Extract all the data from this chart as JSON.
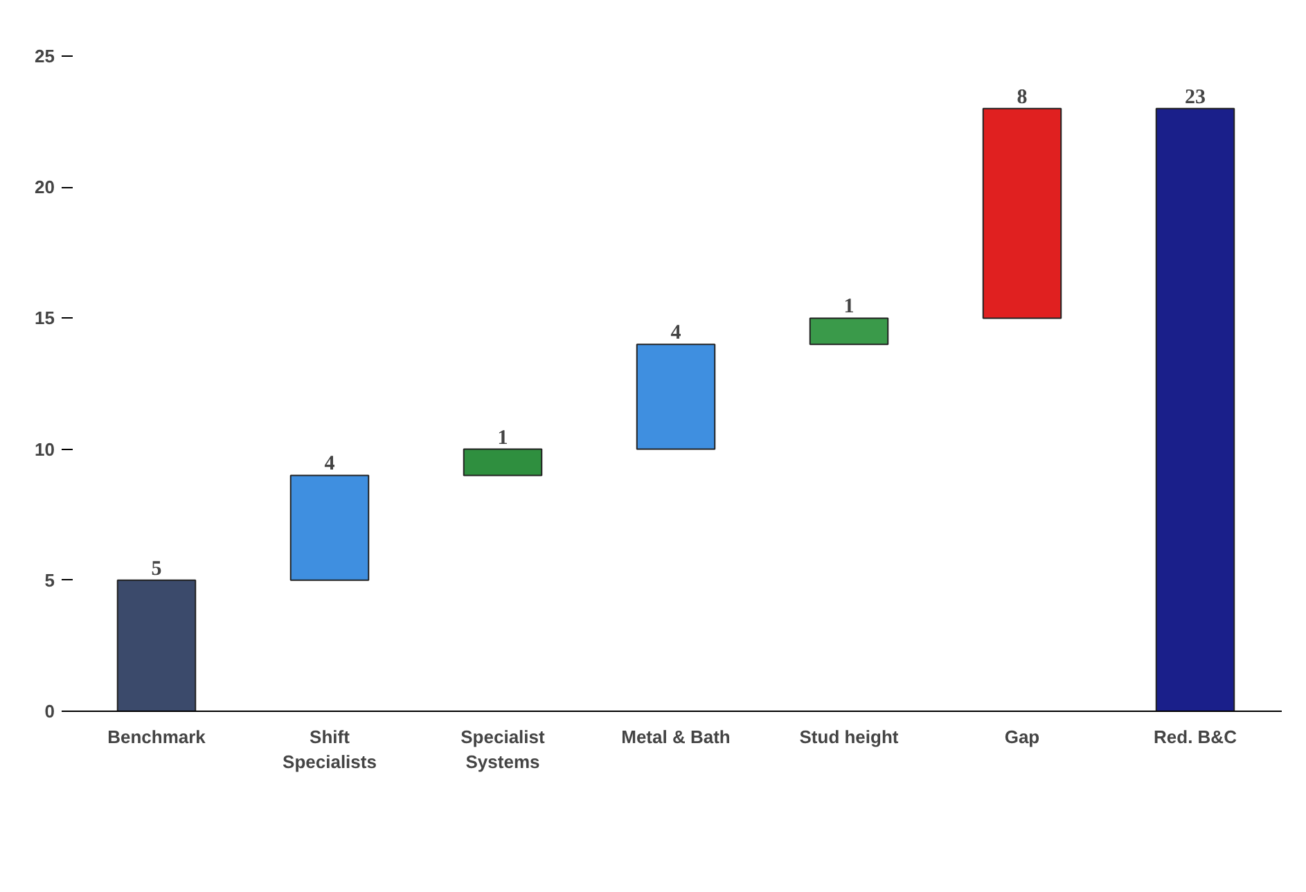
{
  "chart_data": {
    "type": "bar",
    "categories": [
      "Benchmark",
      "Shift\nSpecialists",
      "Specialist\nSystems",
      "Metal & Bath",
      "Stud height",
      "Gap",
      "Red. B&C"
    ],
    "values": [
      5,
      4,
      1,
      4,
      1,
      8,
      23
    ],
    "base": [
      0,
      5,
      9,
      10,
      14,
      15,
      0
    ],
    "colors": [
      "#3b4a6b",
      "#3f8fe0",
      "#2f8f3f",
      "#3f8fe0",
      "#3a9a4a",
      "#e02020",
      "#1a1f8a"
    ],
    "ylim": [
      0,
      25
    ],
    "yticks": [
      0,
      5,
      10,
      15,
      20,
      25
    ],
    "data_labels": true,
    "grid": false
  }
}
